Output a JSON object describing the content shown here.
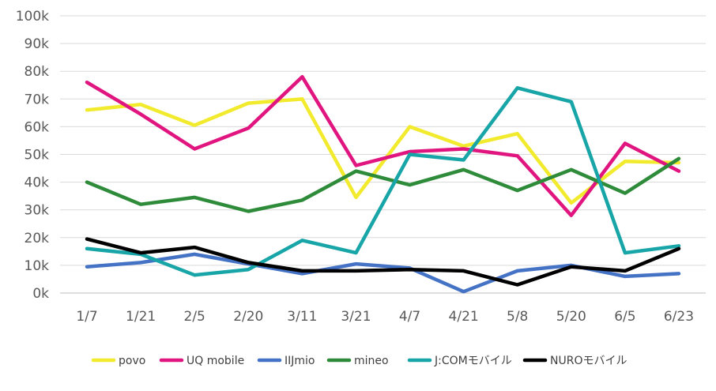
{
  "chart_data": {
    "type": "line",
    "title": "",
    "xlabel": "",
    "ylabel": "",
    "categories": [
      "1/7",
      "1/21",
      "2/5",
      "2/20",
      "3/11",
      "3/21",
      "4/7",
      "4/21",
      "5/8",
      "5/20",
      "6/5",
      "6/23"
    ],
    "y_ticks": [
      {
        "value": 0,
        "label": "0k"
      },
      {
        "value": 10000,
        "label": "10k"
      },
      {
        "value": 20000,
        "label": "20k"
      },
      {
        "value": 30000,
        "label": "30k"
      },
      {
        "value": 40000,
        "label": "40k"
      },
      {
        "value": 50000,
        "label": "50k"
      },
      {
        "value": 60000,
        "label": "60k"
      },
      {
        "value": 70000,
        "label": "70k"
      },
      {
        "value": 80000,
        "label": "80k"
      },
      {
        "value": 90000,
        "label": "90k"
      },
      {
        "value": 100000,
        "label": "100k"
      }
    ],
    "ylim": [
      0,
      100000
    ],
    "grid": true,
    "legend_position": "bottom",
    "series": [
      {
        "name": "povo",
        "color": "#f2ea2c",
        "values": [
          66000,
          68000,
          60500,
          68500,
          70000,
          34500,
          60000,
          53000,
          57500,
          32500,
          47500,
          47000
        ]
      },
      {
        "name": "UQ mobile",
        "color": "#e0157f",
        "values": [
          76000,
          64500,
          52000,
          59500,
          78000,
          46000,
          51000,
          52000,
          49500,
          28000,
          54000,
          44000
        ]
      },
      {
        "name": "IIJmio",
        "color": "#4472c4",
        "values": [
          9500,
          11000,
          14000,
          10500,
          7000,
          10500,
          9000,
          500,
          8000,
          10000,
          6000,
          7000
        ]
      },
      {
        "name": "mineo",
        "color": "#2e8b3a",
        "values": [
          40000,
          32000,
          34500,
          29500,
          33500,
          44000,
          39000,
          44500,
          37000,
          44500,
          36000,
          48500
        ]
      },
      {
        "name": "J:COMモバイル",
        "color": "#17a5a8",
        "values": [
          16000,
          14000,
          6500,
          8500,
          19000,
          14500,
          50000,
          48000,
          74000,
          69000,
          14500,
          17000
        ]
      },
      {
        "name": "NUROモバイル",
        "color": "#000000",
        "values": [
          19500,
          14500,
          16500,
          11000,
          8000,
          8000,
          8500,
          8000,
          3000,
          9500,
          8000,
          16000
        ]
      }
    ]
  }
}
